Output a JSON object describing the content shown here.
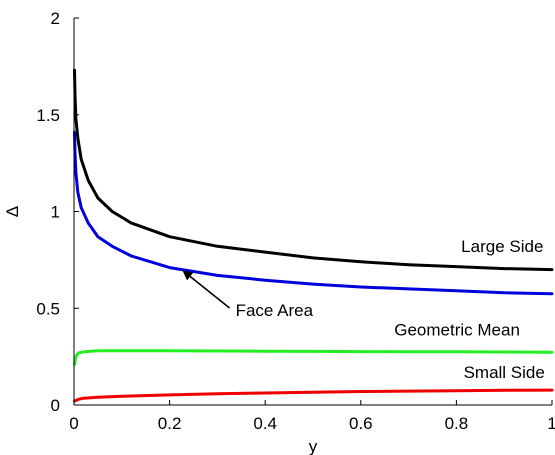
{
  "chart_data": {
    "type": "line",
    "title": "",
    "xlabel": "y",
    "ylabel": "Δ",
    "xlim": [
      0,
      1
    ],
    "ylim": [
      0,
      2
    ],
    "grid": false,
    "x_ticks": [
      {
        "value": 0,
        "label": "0"
      },
      {
        "value": 0.2,
        "label": "0.2"
      },
      {
        "value": 0.4,
        "label": "0.4"
      },
      {
        "value": 0.6,
        "label": "0.6"
      },
      {
        "value": 0.8,
        "label": "0.8"
      },
      {
        "value": 1,
        "label": "1"
      }
    ],
    "y_ticks": [
      {
        "value": 0,
        "label": "0"
      },
      {
        "value": 0.5,
        "label": "0.5"
      },
      {
        "value": 1,
        "label": "1"
      },
      {
        "value": 1.5,
        "label": "1.5"
      },
      {
        "value": 2,
        "label": "2"
      }
    ],
    "series": [
      {
        "name": "Large Side",
        "color": "#000000",
        "x": [
          0.001,
          0.002,
          0.004,
          0.008,
          0.015,
          0.03,
          0.05,
          0.08,
          0.12,
          0.2,
          0.3,
          0.4,
          0.5,
          0.6,
          0.7,
          0.8,
          0.9,
          1.0
        ],
        "y": [
          1.73,
          1.6,
          1.48,
          1.38,
          1.27,
          1.16,
          1.07,
          1.0,
          0.94,
          0.87,
          0.82,
          0.79,
          0.76,
          0.74,
          0.725,
          0.715,
          0.705,
          0.7
        ]
      },
      {
        "name": "Face Area",
        "color": "#0000dd",
        "x": [
          0.001,
          0.002,
          0.004,
          0.008,
          0.015,
          0.03,
          0.05,
          0.08,
          0.12,
          0.2,
          0.3,
          0.4,
          0.5,
          0.6,
          0.7,
          0.8,
          0.9,
          1.0
        ],
        "y": [
          1.41,
          1.3,
          1.2,
          1.1,
          1.02,
          0.94,
          0.87,
          0.82,
          0.77,
          0.71,
          0.67,
          0.645,
          0.625,
          0.61,
          0.6,
          0.59,
          0.58,
          0.575
        ]
      },
      {
        "name": "Geometric Mean",
        "color": "#22ee22",
        "x": [
          0.001,
          0.003,
          0.006,
          0.01,
          0.02,
          0.05,
          0.1,
          0.2,
          0.3,
          0.4,
          0.5,
          0.6,
          0.7,
          0.8,
          0.9,
          1.0
        ],
        "y": [
          0.21,
          0.24,
          0.26,
          0.27,
          0.275,
          0.28,
          0.28,
          0.28,
          0.279,
          0.278,
          0.277,
          0.276,
          0.275,
          0.275,
          0.274,
          0.273
        ]
      },
      {
        "name": "Small Side",
        "color": "#ee0000",
        "x": [
          0.001,
          0.005,
          0.01,
          0.02,
          0.05,
          0.1,
          0.2,
          0.3,
          0.4,
          0.5,
          0.6,
          0.7,
          0.8,
          0.9,
          1.0
        ],
        "y": [
          0.02,
          0.025,
          0.03,
          0.035,
          0.04,
          0.045,
          0.052,
          0.058,
          0.062,
          0.066,
          0.07,
          0.072,
          0.074,
          0.076,
          0.077
        ]
      }
    ],
    "annotations": [
      {
        "text": "Large Side",
        "x": 0.81,
        "y": 0.79
      },
      {
        "text": "Face Area",
        "x": 0.338,
        "y": 0.46,
        "arrow_to": [
          0.23,
          0.69
        ]
      },
      {
        "text": "Geometric Mean",
        "x": 0.67,
        "y": 0.36
      },
      {
        "text": "Small Side",
        "x": 0.815,
        "y": 0.14
      }
    ]
  }
}
